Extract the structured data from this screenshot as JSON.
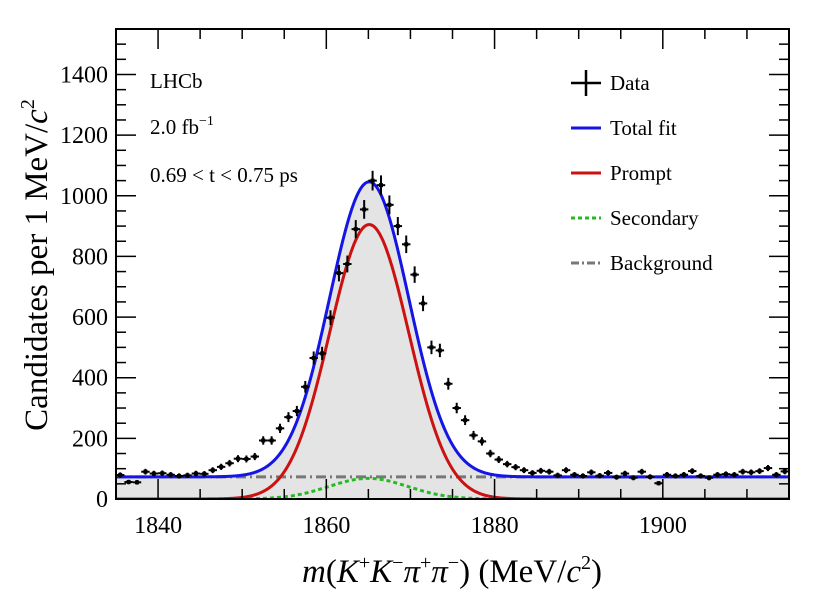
{
  "chart_data": {
    "type": "line",
    "experiment": "LHCb",
    "luminosity": {
      "value": "2.0 fb",
      "exponent": "−1"
    },
    "time_bin": "0.69 < t < 0.75 ps",
    "xlabel": {
      "m": "m",
      "open": "(",
      "K": "K",
      "plus": "+",
      "minus": "−",
      "pi": "π",
      "close": ")",
      "units_open": " (MeV/",
      "c": "c",
      "two": "2",
      "units_close": ")"
    },
    "ylabel": {
      "text": "Candidates per 1 MeV/",
      "c": "c",
      "two": "2"
    },
    "xlim": [
      1835,
      1915
    ],
    "ylim": [
      0,
      1550
    ],
    "xticks": [
      1840,
      1860,
      1880,
      1900
    ],
    "yticks": [
      0,
      200,
      400,
      600,
      800,
      1000,
      1200,
      1400
    ],
    "legend": [
      {
        "label": "Data",
        "color": "#000000",
        "style": "errorbar"
      },
      {
        "label": "Total fit",
        "color": "#1515e6",
        "style": "solid"
      },
      {
        "label": "Prompt",
        "color": "#cc1111",
        "style": "solid"
      },
      {
        "label": "Secondary",
        "color": "#22bb22",
        "style": "dotted"
      },
      {
        "label": "Background",
        "color": "#777777",
        "style": "dashdot"
      }
    ],
    "components": {
      "background_level": 73,
      "prompt": {
        "amplitude": 905,
        "mean": 1865.1,
        "sigma": 4.7
      },
      "secondary": {
        "amplitude": 68,
        "mean": 1865.0,
        "sigma": 4.7
      }
    },
    "data_points": [
      {
        "x": 1835.5,
        "y": 79
      },
      {
        "x": 1836.5,
        "y": 56
      },
      {
        "x": 1837.5,
        "y": 55
      },
      {
        "x": 1838.5,
        "y": 90
      },
      {
        "x": 1839.5,
        "y": 84
      },
      {
        "x": 1840.5,
        "y": 85
      },
      {
        "x": 1841.5,
        "y": 80
      },
      {
        "x": 1842.5,
        "y": 76
      },
      {
        "x": 1843.5,
        "y": 78
      },
      {
        "x": 1844.5,
        "y": 84
      },
      {
        "x": 1845.5,
        "y": 83
      },
      {
        "x": 1846.5,
        "y": 95
      },
      {
        "x": 1847.5,
        "y": 106
      },
      {
        "x": 1848.5,
        "y": 118
      },
      {
        "x": 1849.5,
        "y": 133
      },
      {
        "x": 1850.5,
        "y": 132
      },
      {
        "x": 1851.5,
        "y": 140
      },
      {
        "x": 1852.5,
        "y": 193
      },
      {
        "x": 1853.5,
        "y": 193
      },
      {
        "x": 1854.5,
        "y": 233
      },
      {
        "x": 1855.5,
        "y": 270
      },
      {
        "x": 1856.5,
        "y": 290
      },
      {
        "x": 1857.5,
        "y": 370
      },
      {
        "x": 1858.5,
        "y": 465
      },
      {
        "x": 1859.5,
        "y": 480
      },
      {
        "x": 1860.5,
        "y": 598
      },
      {
        "x": 1861.5,
        "y": 745
      },
      {
        "x": 1862.5,
        "y": 775
      },
      {
        "x": 1863.5,
        "y": 890
      },
      {
        "x": 1864.5,
        "y": 955
      },
      {
        "x": 1865.5,
        "y": 1050
      },
      {
        "x": 1866.5,
        "y": 1035
      },
      {
        "x": 1867.5,
        "y": 970
      },
      {
        "x": 1868.5,
        "y": 900
      },
      {
        "x": 1869.5,
        "y": 840
      },
      {
        "x": 1870.5,
        "y": 740
      },
      {
        "x": 1871.5,
        "y": 645
      },
      {
        "x": 1872.5,
        "y": 500
      },
      {
        "x": 1873.5,
        "y": 490
      },
      {
        "x": 1874.5,
        "y": 380
      },
      {
        "x": 1875.5,
        "y": 300
      },
      {
        "x": 1876.5,
        "y": 260
      },
      {
        "x": 1877.5,
        "y": 210
      },
      {
        "x": 1878.5,
        "y": 190
      },
      {
        "x": 1879.5,
        "y": 150
      },
      {
        "x": 1880.5,
        "y": 130
      },
      {
        "x": 1881.5,
        "y": 115
      },
      {
        "x": 1882.5,
        "y": 105
      },
      {
        "x": 1883.5,
        "y": 95
      },
      {
        "x": 1884.5,
        "y": 86
      },
      {
        "x": 1885.5,
        "y": 93
      },
      {
        "x": 1886.5,
        "y": 90
      },
      {
        "x": 1887.5,
        "y": 78
      },
      {
        "x": 1888.5,
        "y": 95
      },
      {
        "x": 1889.5,
        "y": 80
      },
      {
        "x": 1890.5,
        "y": 76
      },
      {
        "x": 1891.5,
        "y": 88
      },
      {
        "x": 1892.5,
        "y": 77
      },
      {
        "x": 1893.5,
        "y": 86
      },
      {
        "x": 1894.5,
        "y": 72
      },
      {
        "x": 1895.5,
        "y": 84
      },
      {
        "x": 1896.5,
        "y": 70
      },
      {
        "x": 1897.5,
        "y": 90
      },
      {
        "x": 1898.5,
        "y": 73
      },
      {
        "x": 1899.5,
        "y": 52
      },
      {
        "x": 1900.5,
        "y": 80
      },
      {
        "x": 1901.5,
        "y": 76
      },
      {
        "x": 1902.5,
        "y": 80
      },
      {
        "x": 1903.5,
        "y": 92
      },
      {
        "x": 1904.5,
        "y": 76
      },
      {
        "x": 1905.5,
        "y": 70
      },
      {
        "x": 1906.5,
        "y": 80
      },
      {
        "x": 1907.5,
        "y": 82
      },
      {
        "x": 1908.5,
        "y": 80
      },
      {
        "x": 1909.5,
        "y": 90
      },
      {
        "x": 1910.5,
        "y": 88
      },
      {
        "x": 1911.5,
        "y": 92
      },
      {
        "x": 1912.5,
        "y": 102
      },
      {
        "x": 1913.5,
        "y": 80
      },
      {
        "x": 1914.5,
        "y": 91
      }
    ]
  }
}
